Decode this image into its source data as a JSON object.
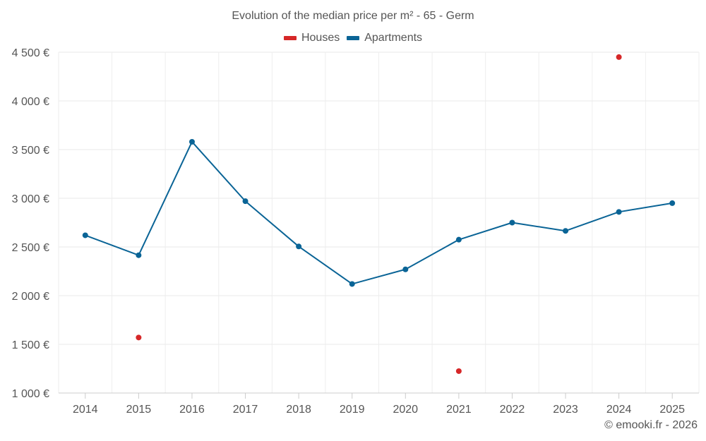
{
  "chart_data": {
    "type": "line",
    "title": "Evolution of the median price per m² - 65 - Germ",
    "categories": [
      "2014",
      "2015",
      "2016",
      "2017",
      "2018",
      "2019",
      "2020",
      "2021",
      "2022",
      "2023",
      "2024",
      "2025"
    ],
    "series": [
      {
        "name": "Houses",
        "color": "#d62728",
        "values": [
          null,
          1570,
          null,
          null,
          null,
          null,
          null,
          1225,
          null,
          null,
          4450,
          null
        ]
      },
      {
        "name": "Apartments",
        "color": "#0a6496",
        "values": [
          2620,
          2415,
          3580,
          2970,
          2505,
          2120,
          2270,
          2575,
          2750,
          2665,
          2860,
          2950
        ]
      }
    ],
    "ylim": [
      1000,
      4500
    ],
    "yticks": [
      1000,
      1500,
      2000,
      2500,
      3000,
      3500,
      4000,
      4500
    ],
    "ytick_labels": [
      "1 000 €",
      "1 500 €",
      "2 000 €",
      "2 500 €",
      "3 000 €",
      "3 500 €",
      "4 000 €",
      "4 500 €"
    ],
    "grid": true,
    "legend_position": "top-center"
  },
  "credit": "© emooki.fr - 2026"
}
